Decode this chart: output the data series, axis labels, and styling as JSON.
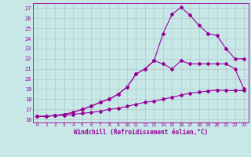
{
  "xlabel": "Windchill (Refroidissement éolien,°C)",
  "bg_color": "#c8e8e8",
  "line_color": "#990099",
  "grid_color": "#b0c8c8",
  "xlim": [
    -0.5,
    23.5
  ],
  "ylim": [
    15.7,
    27.5
  ],
  "yticks": [
    16,
    17,
    18,
    19,
    20,
    21,
    22,
    23,
    24,
    25,
    26,
    27
  ],
  "xticks": [
    0,
    1,
    2,
    3,
    4,
    5,
    6,
    7,
    8,
    9,
    10,
    11,
    12,
    13,
    14,
    15,
    16,
    17,
    18,
    19,
    20,
    21,
    22,
    23
  ],
  "line1_x": [
    0,
    1,
    2,
    3,
    4,
    5,
    6,
    7,
    8,
    9,
    10,
    11,
    12,
    13,
    14,
    15,
    16,
    17,
    18,
    19,
    20,
    21,
    22,
    23
  ],
  "line1_y": [
    16.3,
    16.3,
    16.4,
    16.4,
    16.5,
    16.6,
    16.7,
    16.8,
    17.0,
    17.1,
    17.3,
    17.5,
    17.7,
    17.8,
    18.0,
    18.2,
    18.4,
    18.6,
    18.7,
    18.8,
    18.9,
    18.85,
    18.85,
    18.85
  ],
  "line2_x": [
    0,
    1,
    2,
    3,
    4,
    5,
    6,
    7,
    8,
    9,
    10,
    11,
    12,
    13,
    14,
    15,
    16,
    17,
    18,
    19,
    20,
    21,
    22,
    23
  ],
  "line2_y": [
    16.3,
    16.3,
    16.4,
    16.5,
    16.7,
    17.0,
    17.3,
    17.7,
    18.0,
    18.5,
    19.2,
    20.5,
    21.0,
    21.8,
    21.5,
    21.0,
    21.8,
    21.5,
    21.5,
    21.5,
    21.5,
    21.5,
    21.0,
    19.0
  ],
  "line3_x": [
    0,
    1,
    2,
    3,
    4,
    5,
    6,
    7,
    8,
    9,
    10,
    11,
    12,
    13,
    14,
    15,
    16,
    17,
    18,
    19,
    20,
    21,
    22,
    23
  ],
  "line3_y": [
    16.3,
    16.3,
    16.4,
    16.5,
    16.7,
    17.0,
    17.3,
    17.7,
    18.0,
    18.5,
    19.2,
    20.5,
    21.0,
    21.8,
    24.5,
    26.4,
    27.1,
    26.3,
    25.3,
    24.5,
    24.3,
    23.0,
    22.0,
    22.0
  ]
}
